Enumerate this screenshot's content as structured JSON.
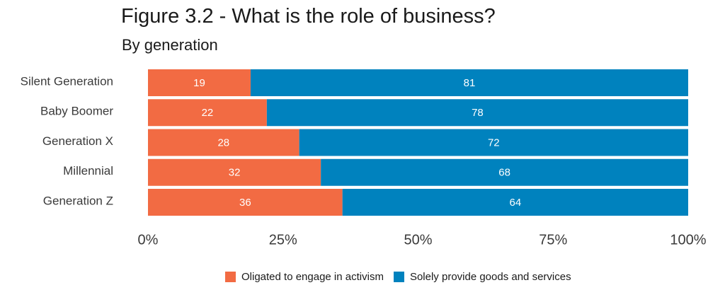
{
  "chart_data": {
    "type": "bar",
    "orientation": "horizontal",
    "stacked": true,
    "title": "Figure 3.2 - What is the role of business?",
    "subtitle": "By generation",
    "categories": [
      "Silent Generation",
      "Baby Boomer",
      "Generation X",
      "Millennial",
      "Generation Z"
    ],
    "series": [
      {
        "name": "Oligated to engage in activism",
        "color": "#f26b43",
        "values": [
          19,
          22,
          28,
          32,
          36
        ]
      },
      {
        "name": "Solely provide goods and services",
        "color": "#0082be",
        "values": [
          81,
          78,
          72,
          68,
          64
        ]
      }
    ],
    "xlim": [
      0,
      100
    ],
    "x_ticks": [
      "0%",
      "25%",
      "50%",
      "75%",
      "100%"
    ],
    "grid": false,
    "legend_position": "bottom"
  }
}
